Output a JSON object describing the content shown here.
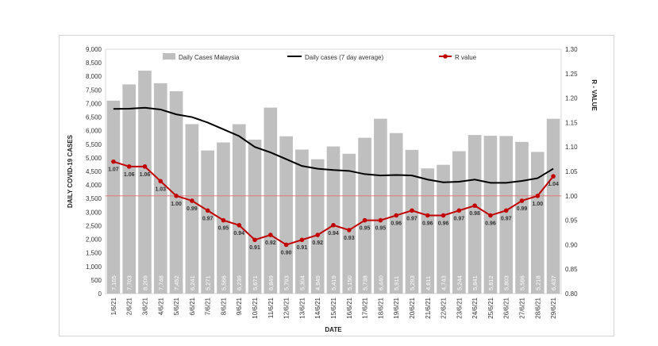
{
  "chart_data": {
    "type": "bar",
    "title": "",
    "xlabel": "DATE",
    "ylabel": "DAILY COVID-19 CASES",
    "y2label": "R - VALUE",
    "ylim": [
      0,
      9000
    ],
    "y2lim": [
      0.8,
      1.3
    ],
    "yticks": [
      "0",
      "500",
      "1,000",
      "1,500",
      "2,000",
      "2,500",
      "3,000",
      "3,500",
      "4,000",
      "4,500",
      "5,000",
      "5,500",
      "6,000",
      "6,500",
      "7,000",
      "7,500",
      "8,000",
      "8,500",
      "9,000"
    ],
    "y2ticks": [
      "0.80",
      "0.85",
      "0.90",
      "0.95",
      "1.00",
      "1.05",
      "1.10",
      "1.15",
      "1.20",
      "1.25",
      "1.30"
    ],
    "categories": [
      "1/6/21",
      "2/6/21",
      "3/6/21",
      "4/6/21",
      "5/6/21",
      "6/6/21",
      "7/6/21",
      "8/6/21",
      "9/6/21",
      "10/6/21",
      "11/6/21",
      "12/6/21",
      "13/6/21",
      "14/6/21",
      "15/6/21",
      "16/6/21",
      "17/6/21",
      "18/6/21",
      "19/6/21",
      "20/6/21",
      "21/6/21",
      "22/6/21",
      "23/6/21",
      "24/6/21",
      "25/6/21",
      "26/6/21",
      "27/6/21",
      "28/6/21",
      "29/6/21"
    ],
    "reference_line": 1.0,
    "series": [
      {
        "name": "Daily Cases Malaysia",
        "type": "bar",
        "color": "#bfbfbf",
        "values": [
          7105,
          7703,
          8209,
          7748,
          7452,
          6241,
          5271,
          5566,
          6239,
          5671,
          6849,
          5793,
          5304,
          4949,
          5419,
          5150,
          5738,
          6440,
          5911,
          5293,
          4611,
          4743,
          5244,
          5841,
          5812,
          5803,
          5586,
          5218,
          6437
        ],
        "labels": [
          "7,105",
          "7,703",
          "8,209",
          "7,748",
          "7,452",
          "6,241",
          "5,271",
          "5,566",
          "6,239",
          "5,671",
          "6,849",
          "5,793",
          "5,304",
          "4,949",
          "5,419",
          "5,150",
          "5,738",
          "6,440",
          "5,911",
          "5,293",
          "4,611",
          "4,743",
          "5,244",
          "5,841",
          "5,812",
          "5,803",
          "5,586",
          "5,218",
          "6,437"
        ]
      },
      {
        "name": "Daily cases (7 day average)",
        "type": "line",
        "color": "#000000",
        "values": [
          6800,
          6810,
          6845,
          6780,
          6600,
          6500,
          6300,
          6050,
          5800,
          5400,
          5200,
          4950,
          4700,
          4600,
          4550,
          4520,
          4400,
          4350,
          4370,
          4350,
          4200,
          4100,
          4120,
          4200,
          4080,
          4080,
          4150,
          4250,
          4600
        ]
      },
      {
        "name": "R value",
        "type": "line",
        "axis": "right",
        "color": "#c00000",
        "values": [
          1.07,
          1.06,
          1.06,
          1.03,
          1.0,
          0.99,
          0.97,
          0.95,
          0.94,
          0.91,
          0.92,
          0.9,
          0.91,
          0.92,
          0.94,
          0.93,
          0.95,
          0.95,
          0.96,
          0.97,
          0.96,
          0.96,
          0.97,
          0.98,
          0.96,
          0.97,
          0.99,
          1.0,
          1.04
        ],
        "labels": [
          "1.07",
          "1.06",
          "1.06",
          "1.03",
          "1.00",
          "0.99",
          "0.97",
          "0.95",
          "0.94",
          "0.91",
          "0.92",
          "0.90",
          "0.91",
          "0.92",
          "0.94",
          "0.93",
          "0.95",
          "0.95",
          "0.96",
          "0.97",
          "0.96",
          "0.96",
          "0.97",
          "0.98",
          "0.96",
          "0.97",
          "0.99",
          "1.00",
          "1.04"
        ]
      }
    ],
    "legend": [
      "Daily Cases Malaysia",
      "Daily cases (7 day average)",
      "R value"
    ],
    "legend_position": "top"
  }
}
